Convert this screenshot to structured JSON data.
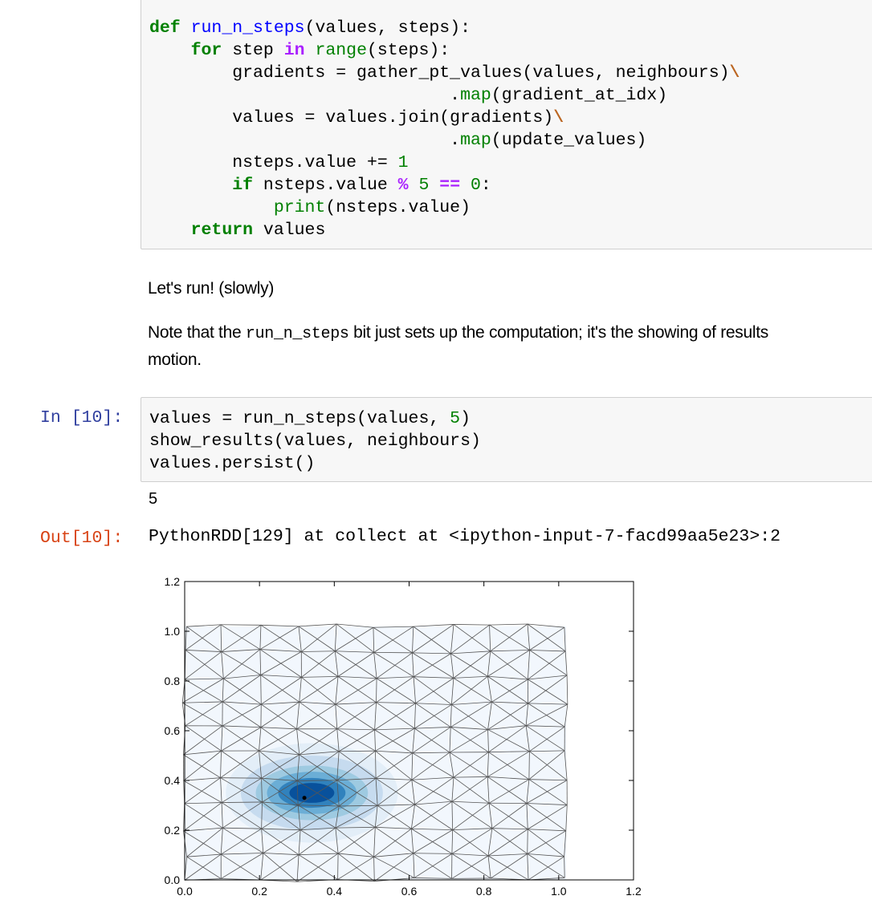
{
  "cell_def": {
    "lines": [
      [
        [
          "kw",
          "def"
        ],
        [
          "t",
          " "
        ],
        [
          "fn",
          "run_n_steps"
        ],
        [
          "t",
          "(values, steps):"
        ]
      ],
      [
        [
          "t",
          "    "
        ],
        [
          "kw",
          "for"
        ],
        [
          "t",
          " step "
        ],
        [
          "op",
          "in"
        ],
        [
          "t",
          " "
        ],
        [
          "bi",
          "range"
        ],
        [
          "t",
          "(steps):"
        ]
      ],
      [
        [
          "t",
          "        gradients = gather_pt_values(values, neighbours)"
        ],
        [
          "esc",
          "\\"
        ]
      ],
      [
        [
          "t",
          "                             ."
        ],
        [
          "bi",
          "map"
        ],
        [
          "t",
          "(gradient_at_idx)"
        ]
      ],
      [
        [
          "t",
          "        values = values.join(gradients)"
        ],
        [
          "esc",
          "\\"
        ]
      ],
      [
        [
          "t",
          "                             ."
        ],
        [
          "bi",
          "map"
        ],
        [
          "t",
          "(update_values)"
        ]
      ],
      [
        [
          "t",
          "        nsteps.value += "
        ],
        [
          "num",
          "1"
        ]
      ],
      [
        [
          "t",
          "        "
        ],
        [
          "kw",
          "if"
        ],
        [
          "t",
          " nsteps.value "
        ],
        [
          "op",
          "%"
        ],
        [
          "t",
          " "
        ],
        [
          "num",
          "5"
        ],
        [
          "t",
          " "
        ],
        [
          "op",
          "=="
        ],
        [
          "t",
          " "
        ],
        [
          "num",
          "0"
        ],
        [
          "t",
          ":"
        ]
      ],
      [
        [
          "t",
          "            "
        ],
        [
          "bi",
          "print"
        ],
        [
          "t",
          "(nsteps.value)"
        ]
      ],
      [
        [
          "t",
          "    "
        ],
        [
          "kw",
          "return"
        ],
        [
          "t",
          " values"
        ]
      ]
    ]
  },
  "markdown": {
    "p1": "Let's run! (slowly)",
    "p2_before": "Note that the ",
    "p2_code": "run_n_steps",
    "p2_after": " bit just sets up the computation; it's the showing of results",
    "p2_line2": "motion."
  },
  "cell_10": {
    "in_prompt": "In [10]:",
    "lines": [
      [
        [
          "t",
          "values = run_n_steps(values, "
        ],
        [
          "num",
          "5"
        ],
        [
          "t",
          ")"
        ]
      ],
      [
        [
          "t",
          "show_results(values, neighbours)"
        ]
      ],
      [
        [
          "t",
          "values.persist()"
        ]
      ]
    ],
    "stream_output": "5",
    "out_prompt": "Out[10]:",
    "out_text": "PythonRDD[129] at collect at <ipython-input-7-facd99aa5e23>:2"
  },
  "chart_data": {
    "type": "triangulated contour mesh",
    "xlim": [
      0.0,
      1.2
    ],
    "ylim": [
      0.0,
      1.2
    ],
    "x_ticks": [
      "0.0",
      "0.2",
      "0.4",
      "0.6",
      "0.8",
      "1.0",
      "1.2"
    ],
    "y_ticks": [
      "0.0",
      "0.2",
      "0.4",
      "0.6",
      "0.8",
      "1.0",
      "1.2"
    ],
    "mesh": {
      "x_range": [
        0.0,
        1.02
      ],
      "y_range": [
        0.0,
        1.02
      ],
      "nx": 11,
      "ny": 11
    },
    "peak": {
      "x": 0.32,
      "y": 0.33
    },
    "contours": [
      {
        "rx": 0.23,
        "ry": 0.2,
        "color": "#e3eef8"
      },
      {
        "rx": 0.19,
        "ry": 0.15,
        "color": "#c6dbef"
      },
      {
        "rx": 0.15,
        "ry": 0.11,
        "color": "#9ecae1"
      },
      {
        "rx": 0.12,
        "ry": 0.085,
        "color": "#6baed6"
      },
      {
        "rx": 0.09,
        "ry": 0.06,
        "color": "#3182bd"
      },
      {
        "rx": 0.06,
        "ry": 0.04,
        "color": "#08519c"
      }
    ],
    "mesh_color": "#555555",
    "fill_color": "#f2f7fd",
    "grid": false
  }
}
